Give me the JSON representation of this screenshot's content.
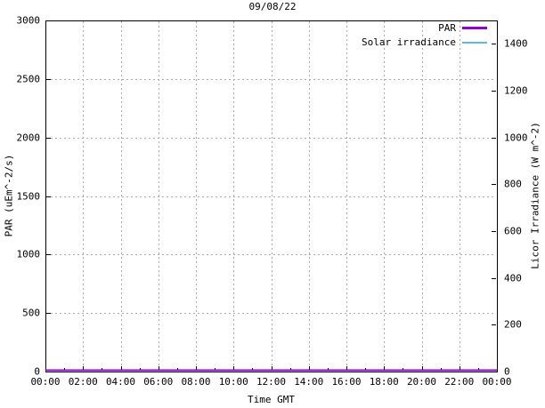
{
  "chart_data": {
    "type": "line",
    "title": "09/08/22",
    "xlabel": "Time GMT",
    "ylabel": "PAR (uEm^-2/s)",
    "y2label": "Licor Irradiance (W m^-2)",
    "x_range_hours": [
      0,
      24
    ],
    "ylim": [
      0,
      3000
    ],
    "y2lim": [
      0,
      1500
    ],
    "xticks": {
      "hours": [
        0,
        2,
        4,
        6,
        8,
        10,
        12,
        14,
        16,
        18,
        20,
        22,
        24
      ],
      "labels": [
        "00:00",
        "02:00",
        "04:00",
        "06:00",
        "08:00",
        "10:00",
        "12:00",
        "14:00",
        "16:00",
        "18:00",
        "20:00",
        "22:00",
        "00:00"
      ],
      "minor_hours": [
        1,
        3,
        5,
        7,
        9,
        11,
        13,
        15,
        17,
        19,
        21,
        23
      ]
    },
    "yticks": {
      "values": [
        0,
        500,
        1000,
        1500,
        2000,
        2500,
        3000
      ],
      "labels": [
        "0",
        "500",
        "1000",
        "1500",
        "2000",
        "2500",
        "3000"
      ]
    },
    "y2ticks": {
      "values": [
        0,
        200,
        400,
        600,
        800,
        1000,
        1200,
        1400
      ],
      "labels": [
        "0",
        "200",
        "400",
        "600",
        "800",
        "1000",
        "1200",
        "1400"
      ]
    },
    "grid": {
      "horizontal_values": [
        500,
        1000,
        1500,
        2000,
        2500
      ],
      "vertical_hours": [
        2,
        4,
        6,
        8,
        10,
        12,
        14,
        16,
        18,
        20,
        22
      ],
      "color": "#a9a9a9",
      "style": "dashed"
    },
    "legend": {
      "position": "top-right-inside",
      "entries": [
        "PAR",
        "Solar irradiance"
      ]
    },
    "frame_color": "#000000",
    "series": [
      {
        "name": "PAR",
        "axis": "left",
        "color": "#9400d3",
        "line_width": 2,
        "x_hours": [
          0,
          1,
          2,
          3,
          4,
          5,
          6,
          7,
          8,
          9,
          10,
          11,
          12,
          13,
          14,
          15,
          16,
          17,
          18,
          19,
          20,
          21,
          22,
          23,
          24
        ],
        "values": [
          0,
          0,
          0,
          0,
          0,
          0,
          0,
          0,
          0,
          0,
          0,
          0,
          0,
          0,
          0,
          0,
          0,
          0,
          0,
          0,
          0,
          0,
          0,
          0,
          0
        ]
      },
      {
        "name": "Solar irradiance",
        "axis": "right",
        "color": "#5db9e2",
        "line_width": 1,
        "x_hours": [
          0,
          1,
          2,
          3,
          4,
          5,
          6,
          7,
          8,
          9,
          10,
          11,
          12,
          13,
          14,
          15,
          16,
          17,
          18,
          19,
          20,
          21,
          22,
          23,
          24
        ],
        "values": [
          0,
          0,
          0,
          0,
          0,
          0,
          0,
          0,
          0,
          0,
          0,
          0,
          0,
          0,
          0,
          0,
          0,
          0,
          0,
          0,
          0,
          0,
          0,
          0,
          0
        ]
      }
    ]
  }
}
